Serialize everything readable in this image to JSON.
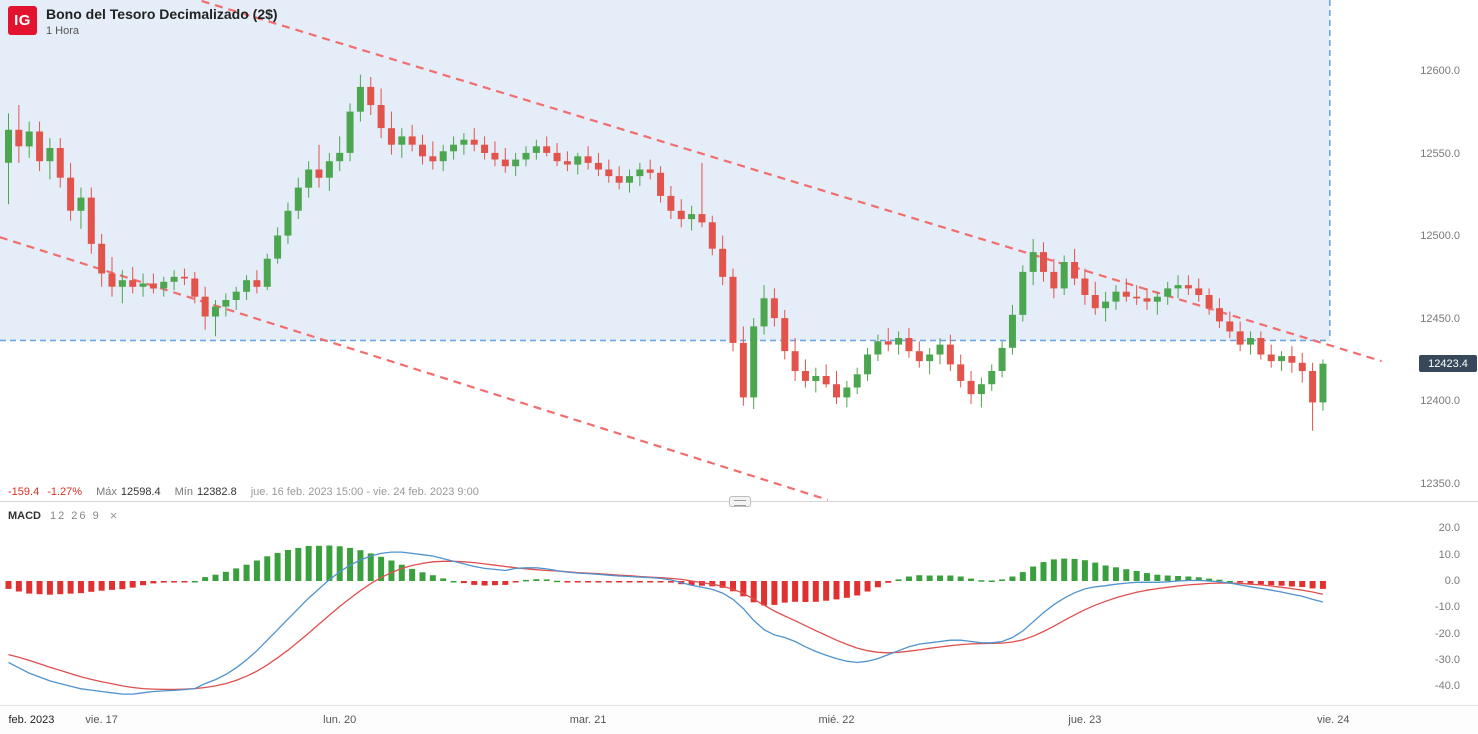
{
  "header": {
    "logo": "IG",
    "title": "Bono del Tesoro Decimalizado (2$)",
    "timeframe": "1 Hora"
  },
  "status_bar": {
    "change": "-159.4",
    "change_pct": "-1.27%",
    "max_label": "Máx",
    "max_value": "12598.4",
    "min_label": "Mín",
    "min_value": "12382.8",
    "range": "jue. 16 feb. 2023 15:00 - vie. 24 feb. 2023 9:00"
  },
  "macd_panel": {
    "label": "MACD",
    "params": "12 26 9",
    "close_icon": "×"
  },
  "chart_data": {
    "type": "candlestick",
    "title": "Bono del Tesoro Decimalizado (2$)",
    "interval": "1 Hora",
    "indicator": "MACD (12, 26, 9)",
    "last_price": "12423.4",
    "price_ticks": [
      12600,
      12550,
      12500,
      12450,
      12400,
      12350
    ],
    "macd_ticks": [
      20,
      10,
      0,
      -10,
      -20,
      -30,
      -40
    ],
    "time_labels": [
      {
        "text": "feb. 2023",
        "candle": 0
      },
      {
        "text": "vie. 17",
        "candle": 9
      },
      {
        "text": "lun. 20",
        "candle": 32
      },
      {
        "text": "mar. 21",
        "candle": 56
      },
      {
        "text": "mié. 22",
        "candle": 80
      },
      {
        "text": "jue. 23",
        "candle": 104
      },
      {
        "text": "vie. 24",
        "candle": 128
      }
    ],
    "candles": [
      [
        12545,
        12575,
        12520,
        12565
      ],
      [
        12565,
        12580,
        12545,
        12555
      ],
      [
        12555,
        12570,
        12548,
        12564
      ],
      [
        12564,
        12570,
        12540,
        12546
      ],
      [
        12546,
        12560,
        12535,
        12554
      ],
      [
        12554,
        12560,
        12530,
        12536
      ],
      [
        12536,
        12545,
        12510,
        12516
      ],
      [
        12516,
        12530,
        12505,
        12524
      ],
      [
        12524,
        12530,
        12490,
        12496
      ],
      [
        12496,
        12502,
        12470,
        12478
      ],
      [
        12478,
        12488,
        12464,
        12470
      ],
      [
        12470,
        12480,
        12460,
        12474
      ],
      [
        12474,
        12482,
        12466,
        12470
      ],
      [
        12470,
        12478,
        12464,
        12472
      ],
      [
        12472,
        12478,
        12466,
        12469
      ],
      [
        12469,
        12476,
        12464,
        12473
      ],
      [
        12473,
        12480,
        12468,
        12476
      ],
      [
        12476,
        12481,
        12471,
        12475
      ],
      [
        12475,
        12479,
        12460,
        12464
      ],
      [
        12464,
        12470,
        12444,
        12452
      ],
      [
        12452,
        12462,
        12440,
        12458
      ],
      [
        12458,
        12466,
        12452,
        12462
      ],
      [
        12462,
        12470,
        12456,
        12467
      ],
      [
        12467,
        12477,
        12462,
        12474
      ],
      [
        12474,
        12480,
        12466,
        12470
      ],
      [
        12470,
        12490,
        12468,
        12487
      ],
      [
        12487,
        12506,
        12484,
        12501
      ],
      [
        12501,
        12521,
        12496,
        12516
      ],
      [
        12516,
        12536,
        12511,
        12530
      ],
      [
        12530,
        12546,
        12524,
        12541
      ],
      [
        12541,
        12556,
        12530,
        12536
      ],
      [
        12536,
        12551,
        12528,
        12546
      ],
      [
        12546,
        12561,
        12540,
        12551
      ],
      [
        12551,
        12581,
        12546,
        12576
      ],
      [
        12576,
        12598.4,
        12570,
        12591
      ],
      [
        12591,
        12597,
        12574,
        12580
      ],
      [
        12580,
        12590,
        12560,
        12566
      ],
      [
        12566,
        12576,
        12550,
        12556
      ],
      [
        12556,
        12566,
        12548,
        12561
      ],
      [
        12561,
        12568,
        12552,
        12556
      ],
      [
        12556,
        12562,
        12544,
        12549
      ],
      [
        12549,
        12558,
        12541,
        12546
      ],
      [
        12546,
        12556,
        12540,
        12552
      ],
      [
        12552,
        12561,
        12547,
        12556
      ],
      [
        12556,
        12563,
        12550,
        12559
      ],
      [
        12559,
        12566,
        12552,
        12556
      ],
      [
        12556,
        12561,
        12547,
        12551
      ],
      [
        12551,
        12558,
        12543,
        12547
      ],
      [
        12547,
        12554,
        12539,
        12543
      ],
      [
        12543,
        12551,
        12537,
        12547
      ],
      [
        12547,
        12555,
        12543,
        12551
      ],
      [
        12551,
        12559,
        12547,
        12555
      ],
      [
        12555,
        12561,
        12549,
        12551
      ],
      [
        12551,
        12557,
        12543,
        12546
      ],
      [
        12546,
        12552,
        12540,
        12544
      ],
      [
        12544,
        12551,
        12538,
        12549
      ],
      [
        12549,
        12555,
        12541,
        12545
      ],
      [
        12545,
        12551,
        12537,
        12541
      ],
      [
        12541,
        12547,
        12533,
        12537
      ],
      [
        12537,
        12543,
        12529,
        12533
      ],
      [
        12533,
        12541,
        12527,
        12537
      ],
      [
        12537,
        12545,
        12531,
        12541
      ],
      [
        12541,
        12547,
        12535,
        12539
      ],
      [
        12539,
        12543,
        12521,
        12525
      ],
      [
        12525,
        12531,
        12511,
        12516
      ],
      [
        12516,
        12523,
        12506,
        12511
      ],
      [
        12511,
        12519,
        12504,
        12514
      ],
      [
        12514,
        12545,
        12506,
        12509
      ],
      [
        12509,
        12513,
        12489,
        12493
      ],
      [
        12493,
        12501,
        12471,
        12476
      ],
      [
        12476,
        12481,
        12431,
        12436
      ],
      [
        12436,
        12446,
        12398,
        12403
      ],
      [
        12403,
        12451,
        12396,
        12446
      ],
      [
        12446,
        12471,
        12441,
        12463
      ],
      [
        12463,
        12469,
        12446,
        12451
      ],
      [
        12451,
        12456,
        12426,
        12431
      ],
      [
        12431,
        12439,
        12413,
        12419
      ],
      [
        12419,
        12426,
        12409,
        12413
      ],
      [
        12413,
        12421,
        12406,
        12416
      ],
      [
        12416,
        12423,
        12409,
        12411
      ],
      [
        12411,
        12419,
        12399,
        12403
      ],
      [
        12403,
        12413,
        12397,
        12409
      ],
      [
        12409,
        12421,
        12405,
        12417
      ],
      [
        12417,
        12433,
        12413,
        12429
      ],
      [
        12429,
        12441,
        12425,
        12437
      ],
      [
        12437,
        12445,
        12431,
        12435
      ],
      [
        12435,
        12443,
        12429,
        12439
      ],
      [
        12439,
        12445,
        12427,
        12431
      ],
      [
        12431,
        12437,
        12421,
        12425
      ],
      [
        12425,
        12433,
        12417,
        12429
      ],
      [
        12429,
        12439,
        12423,
        12435
      ],
      [
        12435,
        12441,
        12419,
        12423
      ],
      [
        12423,
        12429,
        12409,
        12413
      ],
      [
        12413,
        12419,
        12399,
        12405
      ],
      [
        12405,
        12415,
        12397,
        12411
      ],
      [
        12411,
        12423,
        12407,
        12419
      ],
      [
        12419,
        12437,
        12415,
        12433
      ],
      [
        12433,
        12459,
        12429,
        12453
      ],
      [
        12453,
        12483,
        12449,
        12479
      ],
      [
        12479,
        12499,
        12471,
        12491
      ],
      [
        12491,
        12497,
        12473,
        12479
      ],
      [
        12479,
        12487,
        12463,
        12469
      ],
      [
        12469,
        12489,
        12465,
        12485
      ],
      [
        12485,
        12493,
        12471,
        12475
      ],
      [
        12475,
        12481,
        12459,
        12465
      ],
      [
        12465,
        12473,
        12453,
        12457
      ],
      [
        12457,
        12467,
        12449,
        12461
      ],
      [
        12461,
        12471,
        12456,
        12467
      ],
      [
        12467,
        12475,
        12461,
        12464
      ],
      [
        12464,
        12471,
        12459,
        12463
      ],
      [
        12463,
        12469,
        12456,
        12461
      ],
      [
        12461,
        12467,
        12453,
        12464
      ],
      [
        12464,
        12473,
        12459,
        12469
      ],
      [
        12469,
        12477,
        12463,
        12471
      ],
      [
        12471,
        12477,
        12465,
        12469
      ],
      [
        12469,
        12475,
        12461,
        12465
      ],
      [
        12465,
        12469,
        12453,
        12457
      ],
      [
        12457,
        12463,
        12445,
        12449
      ],
      [
        12449,
        12455,
        12439,
        12443
      ],
      [
        12443,
        12449,
        12431,
        12435
      ],
      [
        12435,
        12443,
        12429,
        12439
      ],
      [
        12439,
        12443,
        12426,
        12429
      ],
      [
        12429,
        12435,
        12421,
        12425
      ],
      [
        12425,
        12431,
        12419,
        12428
      ],
      [
        12428,
        12434,
        12418,
        12424
      ],
      [
        12424,
        12430,
        12412,
        12419
      ],
      [
        12419,
        12424,
        12382.8,
        12400
      ],
      [
        12400,
        12426,
        12395,
        12423.4
      ]
    ],
    "macd": {
      "macd": [
        -31,
        -33,
        -35,
        -36.5,
        -38,
        -39,
        -40,
        -41,
        -41.5,
        -42,
        -42.5,
        -43,
        -43,
        -42.5,
        -42,
        -41.8,
        -41.6,
        -41.3,
        -40.9,
        -39,
        -37.5,
        -35.5,
        -33,
        -30,
        -26.5,
        -22.5,
        -18.5,
        -14.5,
        -10.5,
        -6.5,
        -3,
        0.5,
        3.5,
        6,
        8,
        9.5,
        10.5,
        11,
        11,
        10.5,
        10,
        9.5,
        8.5,
        7.5,
        6.5,
        5.5,
        4.8,
        4.4,
        4,
        4.8,
        5,
        5,
        4.6,
        3.9,
        3.4,
        3,
        2.8,
        2.5,
        2.2,
        1.9,
        1.7,
        1.5,
        1.3,
        1,
        0.4,
        -0.6,
        -1.6,
        -2.4,
        -3.2,
        -4.6,
        -7,
        -10.5,
        -15,
        -18.5,
        -20.5,
        -21.5,
        -23,
        -25,
        -26.8,
        -28.2,
        -29.5,
        -30.5,
        -31,
        -30.5,
        -29.5,
        -28,
        -26.5,
        -25,
        -24,
        -23.5,
        -23,
        -22.5,
        -22.5,
        -23,
        -23.5,
        -23.5,
        -23,
        -21.5,
        -19,
        -15.5,
        -12,
        -9,
        -6.5,
        -4.5,
        -3,
        -2.2,
        -1.8,
        -1.2,
        -0.8,
        -0.5,
        -0.5,
        -0.5,
        -0.3,
        0,
        0.2,
        0.2,
        0,
        -0.3,
        -0.8,
        -1.5,
        -2.2,
        -2.8,
        -3.5,
        -4.2,
        -5,
        -5.8,
        -7,
        -8
      ],
      "signal": [
        -28,
        -29,
        -30.2,
        -31.5,
        -32.8,
        -34,
        -35.2,
        -36.4,
        -37.4,
        -38.3,
        -39.1,
        -39.9,
        -40.5,
        -40.9,
        -41.1,
        -41.2,
        -41.2,
        -41.1,
        -40.9,
        -40.5,
        -39.9,
        -39,
        -37.8,
        -36.2,
        -34.3,
        -31.9,
        -29.2,
        -26.3,
        -23.1,
        -19.8,
        -16.4,
        -13,
        -9.7,
        -6.6,
        -3.7,
        -1,
        1.3,
        3.2,
        4.8,
        5.9,
        6.7,
        7.3,
        7.5,
        7.5,
        7.3,
        7,
        6.5,
        6,
        5.5,
        5,
        4.6,
        4.3,
        4,
        3.8,
        3.5,
        3.2,
        3,
        2.8,
        2.5,
        2.2,
        2,
        1.7,
        1.5,
        1.3,
        1,
        0.6,
        0,
        -0.6,
        -1.2,
        -2,
        -3.1,
        -4.7,
        -6.9,
        -9.2,
        -11.4,
        -13.3,
        -15.1,
        -17,
        -18.9,
        -20.7,
        -22.5,
        -24.1,
        -25.5,
        -26.5,
        -27.1,
        -27.3,
        -27.1,
        -26.7,
        -26.2,
        -25.6,
        -25.1,
        -24.6,
        -24.2,
        -23.9,
        -23.8,
        -23.7,
        -23.6,
        -23.2,
        -22.4,
        -21,
        -19.2,
        -17.2,
        -15,
        -12.9,
        -10.9,
        -9.2,
        -7.7,
        -6.4,
        -5.3,
        -4.3,
        -3.5,
        -2.9,
        -2.4,
        -1.9,
        -1.5,
        -1.2,
        -0.9,
        -0.8,
        -0.8,
        -0.9,
        -1.2,
        -1.5,
        -1.9,
        -2.4,
        -2.9,
        -3.5,
        -4.2,
        -5
      ]
    },
    "annotations": {
      "region": {
        "right_candle": 128,
        "bottom_price": 12437.5
      },
      "trendlines": [
        {
          "from": {
            "candle": 19,
            "price": 12643
          },
          "to": {
            "candle": 133,
            "price": 12425
          }
        },
        {
          "from": {
            "candle": -0.5,
            "price": 12500
          },
          "to": {
            "candle": 79.5,
            "price": 12341
          }
        }
      ]
    },
    "colors": {
      "up": "#4ca64f",
      "down": "#e2544b",
      "hist_up": "#3aa03e",
      "hist_down": "#e03131",
      "macd_line": "#4f93ce",
      "signal_line": "#e04f4f",
      "trendline": "#f26d6d",
      "region_fill": "#dbe7f6",
      "region_border": "#66a3e0",
      "badge_bg": "#36485a"
    }
  }
}
